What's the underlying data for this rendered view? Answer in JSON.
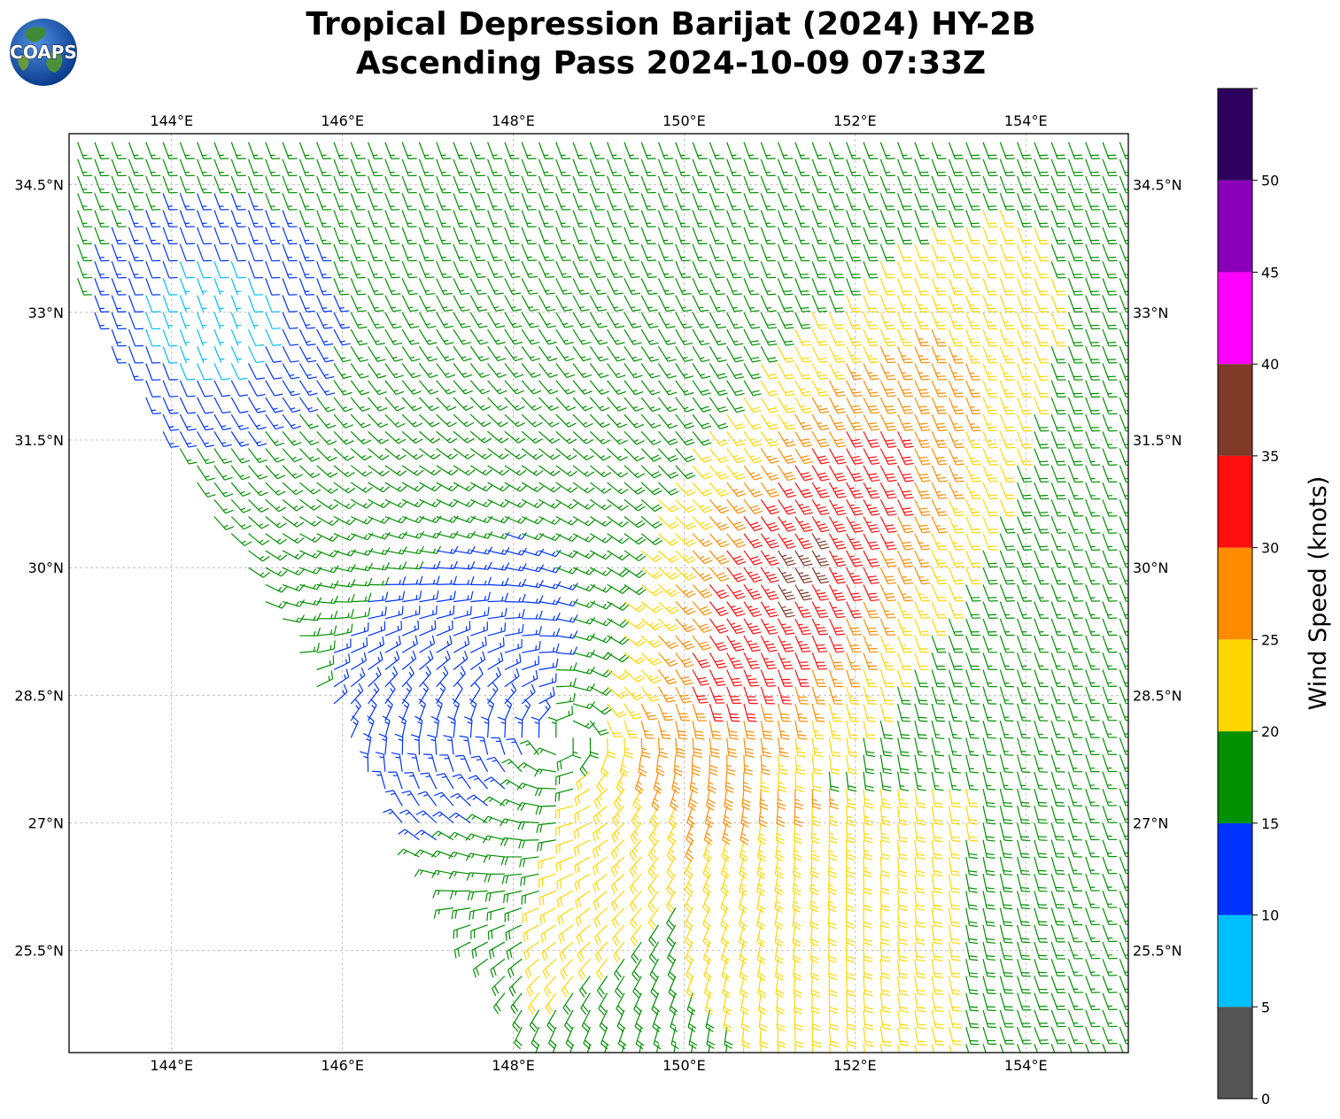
{
  "title": {
    "line1": "Tropical Depression Barijat (2024) HY-2B",
    "line2": "Ascending Pass 2024-10-09 07:33Z"
  },
  "logo": {
    "text": "COAPS",
    "icon": "globe-icon"
  },
  "map": {
    "lon_range": [
      142.8,
      155.2
    ],
    "lat_range": [
      24.3,
      35.1
    ],
    "lon_ticks": [
      {
        "value": 144,
        "label": "144°E"
      },
      {
        "value": 146,
        "label": "146°E"
      },
      {
        "value": 148,
        "label": "148°E"
      },
      {
        "value": 150,
        "label": "150°E"
      },
      {
        "value": 152,
        "label": "152°E"
      },
      {
        "value": 154,
        "label": "154°E"
      }
    ],
    "lat_ticks": [
      {
        "value": 34.5,
        "label": "34.5°N"
      },
      {
        "value": 33,
        "label": "33°N"
      },
      {
        "value": 31.5,
        "label": "31.5°N"
      },
      {
        "value": 30,
        "label": "30°N"
      },
      {
        "value": 28.5,
        "label": "28.5°N"
      },
      {
        "value": 27,
        "label": "27°N"
      },
      {
        "value": 25.5,
        "label": "25.5°N"
      }
    ],
    "grid": true,
    "barb_field": {
      "type": "cyclonic-wind-barbs",
      "center_lon": 148.6,
      "center_lat": 28.0,
      "grid_step_lon": 0.2,
      "grid_step_lat": 0.2
    }
  },
  "colorbar": {
    "label": "Wind Speed (knots)",
    "ticks": [
      "0",
      "5",
      "10",
      "15",
      "20",
      "25",
      "30",
      "35",
      "40",
      "45",
      "50"
    ],
    "bins": [
      {
        "min": 0,
        "max": 5,
        "color": "#545454"
      },
      {
        "min": 5,
        "max": 10,
        "color": "#00bfff"
      },
      {
        "min": 10,
        "max": 15,
        "color": "#0033ff"
      },
      {
        "min": 15,
        "max": 20,
        "color": "#009000"
      },
      {
        "min": 20,
        "max": 25,
        "color": "#ffd700"
      },
      {
        "min": 25,
        "max": 30,
        "color": "#ff8c00"
      },
      {
        "min": 30,
        "max": 35,
        "color": "#ff0f0f"
      },
      {
        "min": 35,
        "max": 40,
        "color": "#7f3a28"
      },
      {
        "min": 40,
        "max": 45,
        "color": "#ff00ff"
      },
      {
        "min": 45,
        "max": 50,
        "color": "#8a00b8"
      },
      {
        "min": 50,
        "max": 55,
        "color": "#2c005c"
      }
    ]
  }
}
